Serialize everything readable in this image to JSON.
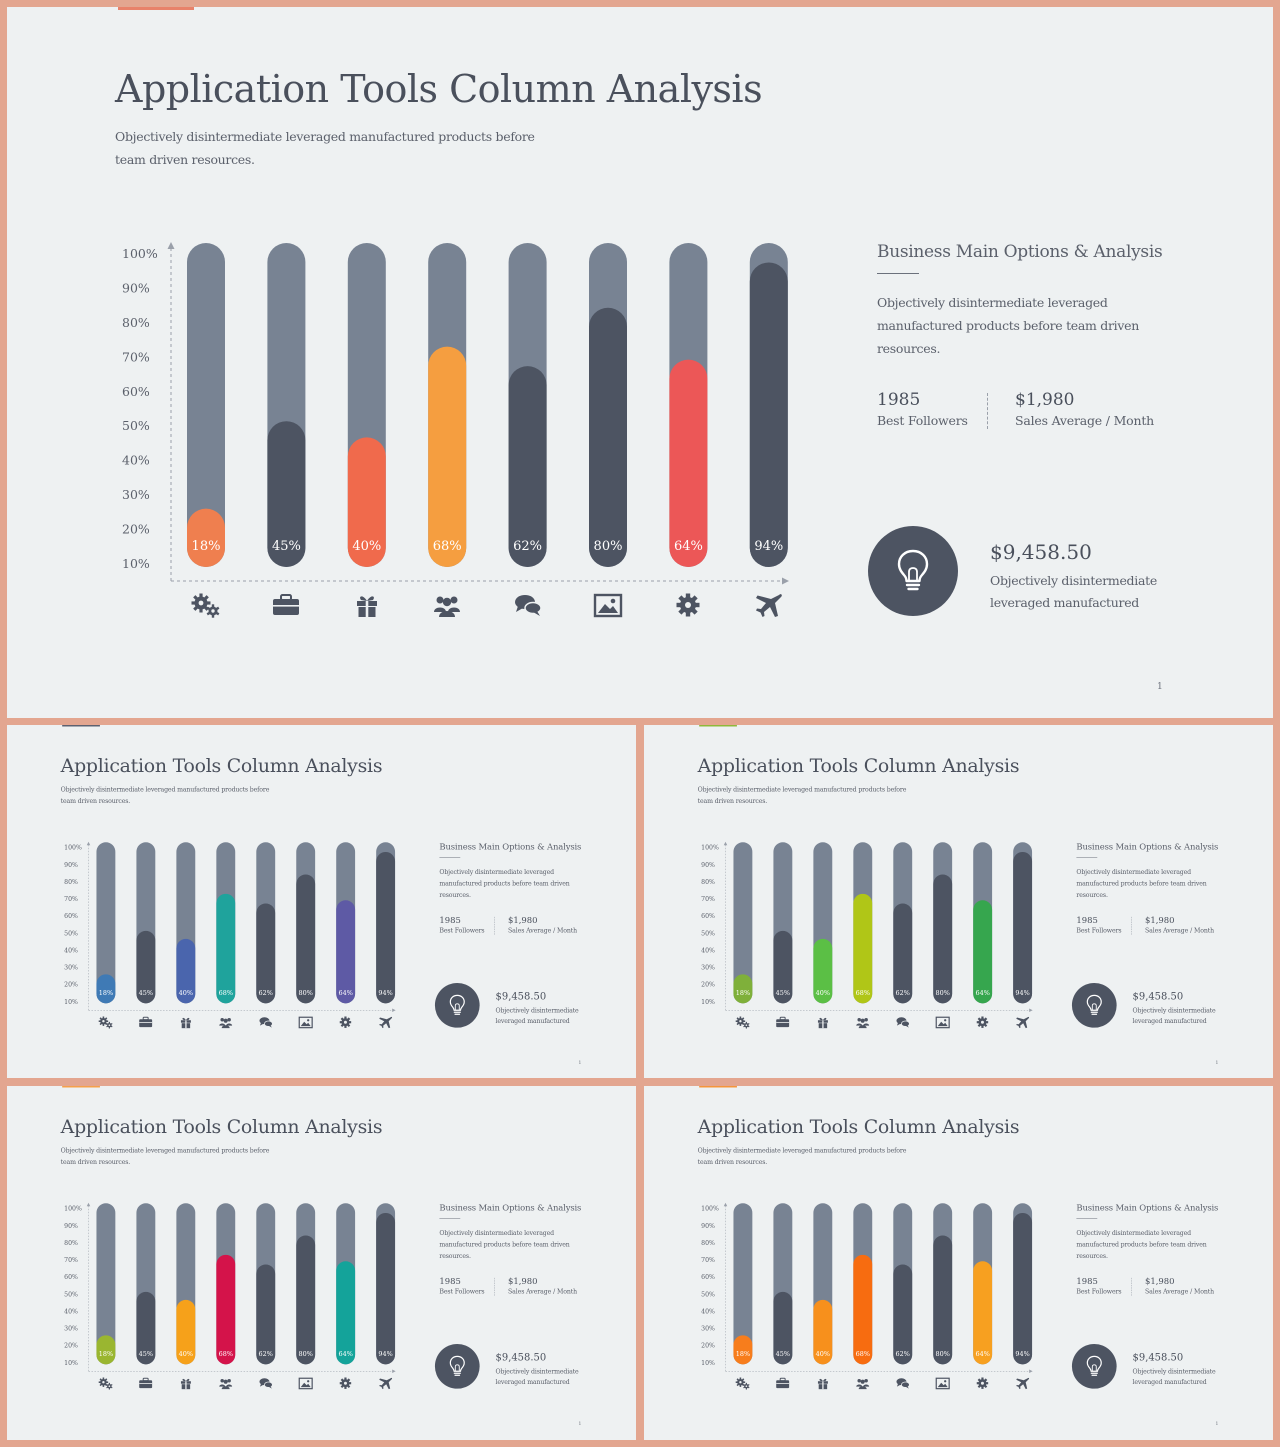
{
  "title": "Application Tools Column Analysis",
  "subtitle": "Objectively disintermediate leveraged manufactured products before team driven resources.",
  "side": {
    "title": "Business Main Options & Analysis",
    "text": "Objectively disintermediate leveraged manufactured products before team driven resources."
  },
  "stats": [
    {
      "value": "1985",
      "label": "Best Followers"
    },
    {
      "value": "$1,980",
      "label": "Sales Average / Month"
    }
  ],
  "highlight": {
    "icon": "lightbulb-icon",
    "value": "$9,458.50",
    "text": "Objectively disintermediate leveraged manufactured"
  },
  "page_number": "1",
  "chart_data": {
    "type": "bar",
    "title": "",
    "xlabel": "",
    "ylabel": "",
    "ylim": [
      0,
      100
    ],
    "yticks": [
      "10%",
      "20%",
      "30%",
      "40%",
      "50%",
      "60%",
      "70%",
      "80%",
      "90%",
      "100%"
    ],
    "categories": [
      "gears-icon",
      "briefcase-icon",
      "gift-icon",
      "users-icon",
      "chat-bubbles-icon",
      "image-icon",
      "gear-icon",
      "airplane-icon"
    ],
    "values": [
      18,
      45,
      40,
      68,
      62,
      80,
      64,
      94
    ],
    "value_labels": [
      "18%",
      "45%",
      "40%",
      "68%",
      "62%",
      "80%",
      "64%",
      "94%"
    ],
    "grid": false,
    "track_color": "#788393",
    "neutral_color": "#4d5462"
  },
  "variants": [
    {
      "accent": "#e8826a",
      "bar_colors": [
        "#ef7f4f",
        "#4d5462",
        "#f06a4c",
        "#f59e40",
        "#4d5462",
        "#4d5462",
        "#ec5757",
        "#4d5462"
      ]
    },
    {
      "accent": "#5d6170",
      "bar_colors": [
        "#3f7ab5",
        "#4d5462",
        "#4a65ad",
        "#1fa39c",
        "#4d5462",
        "#4d5462",
        "#5e5aa5",
        "#4d5462"
      ]
    },
    {
      "accent": "#8fb83a",
      "bar_colors": [
        "#7fb03a",
        "#4d5462",
        "#5bbf45",
        "#b0c617",
        "#4d5462",
        "#4d5462",
        "#36a64e",
        "#4d5462"
      ]
    },
    {
      "accent": "#f5a04a",
      "bar_colors": [
        "#9ab630",
        "#4d5462",
        "#f6a11a",
        "#d4134a",
        "#4d5462",
        "#4d5462",
        "#14a39a",
        "#4d5462"
      ]
    },
    {
      "accent": "#f5953a",
      "bar_colors": [
        "#f77d1c",
        "#4d5462",
        "#f7901c",
        "#f76c10",
        "#4d5462",
        "#4d5462",
        "#f7a020",
        "#4d5462"
      ]
    }
  ]
}
